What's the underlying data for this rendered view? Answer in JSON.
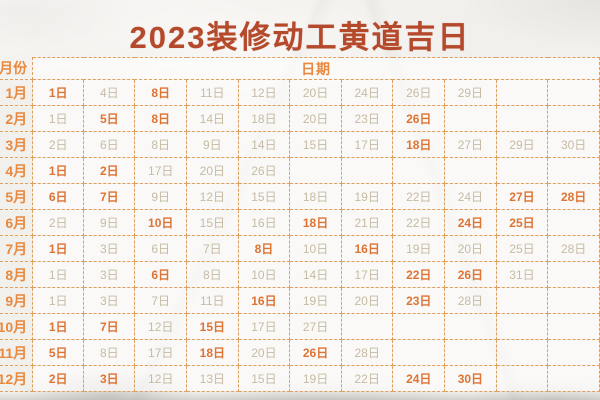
{
  "title": "2023装修动工黄道吉日",
  "table": {
    "month_header": "月份",
    "date_header": "日期",
    "visible_day_columns": 11,
    "rows": [
      {
        "month": "1月",
        "days": [
          {
            "d": "1日",
            "hl": true
          },
          {
            "d": "4日",
            "hl": false
          },
          {
            "d": "8日",
            "hl": true
          },
          {
            "d": "11日",
            "hl": false
          },
          {
            "d": "12日",
            "hl": false
          },
          {
            "d": "20日",
            "hl": false
          },
          {
            "d": "24日",
            "hl": false
          },
          {
            "d": "26日",
            "hl": false
          },
          {
            "d": "29日",
            "hl": false
          },
          null,
          null
        ]
      },
      {
        "month": "2月",
        "days": [
          {
            "d": "1日",
            "hl": false
          },
          {
            "d": "5日",
            "hl": true
          },
          {
            "d": "8日",
            "hl": true
          },
          {
            "d": "14日",
            "hl": false
          },
          {
            "d": "18日",
            "hl": false
          },
          {
            "d": "20日",
            "hl": false
          },
          {
            "d": "23日",
            "hl": false
          },
          {
            "d": "26日",
            "hl": true
          },
          null,
          null,
          null
        ]
      },
      {
        "month": "3月",
        "days": [
          {
            "d": "2日",
            "hl": false
          },
          {
            "d": "6日",
            "hl": false
          },
          {
            "d": "8日",
            "hl": false
          },
          {
            "d": "9日",
            "hl": false
          },
          {
            "d": "14日",
            "hl": false
          },
          {
            "d": "15日",
            "hl": false
          },
          {
            "d": "17日",
            "hl": false
          },
          {
            "d": "18日",
            "hl": true
          },
          {
            "d": "27日",
            "hl": false
          },
          {
            "d": "29日",
            "hl": false
          },
          {
            "d": "30日",
            "hl": false
          }
        ]
      },
      {
        "month": "4月",
        "days": [
          {
            "d": "1日",
            "hl": true
          },
          {
            "d": "2日",
            "hl": true
          },
          {
            "d": "17日",
            "hl": false
          },
          {
            "d": "20日",
            "hl": false
          },
          {
            "d": "26日",
            "hl": false
          },
          null,
          null,
          null,
          null,
          null,
          null
        ]
      },
      {
        "month": "5月",
        "days": [
          {
            "d": "6日",
            "hl": true
          },
          {
            "d": "7日",
            "hl": true
          },
          {
            "d": "9日",
            "hl": false
          },
          {
            "d": "12日",
            "hl": false
          },
          {
            "d": "15日",
            "hl": false
          },
          {
            "d": "18日",
            "hl": false
          },
          {
            "d": "19日",
            "hl": false
          },
          {
            "d": "22日",
            "hl": false
          },
          {
            "d": "24日",
            "hl": false
          },
          {
            "d": "27日",
            "hl": true
          },
          {
            "d": "28日",
            "hl": true
          }
        ]
      },
      {
        "month": "6月",
        "days": [
          {
            "d": "2日",
            "hl": false
          },
          {
            "d": "9日",
            "hl": false
          },
          {
            "d": "10日",
            "hl": true
          },
          {
            "d": "15日",
            "hl": false
          },
          {
            "d": "16日",
            "hl": false
          },
          {
            "d": "18日",
            "hl": true
          },
          {
            "d": "21日",
            "hl": false
          },
          {
            "d": "22日",
            "hl": false
          },
          {
            "d": "24日",
            "hl": true
          },
          {
            "d": "25日",
            "hl": true
          },
          null
        ]
      },
      {
        "month": "7月",
        "days": [
          {
            "d": "1日",
            "hl": true
          },
          {
            "d": "3日",
            "hl": false
          },
          {
            "d": "6日",
            "hl": false
          },
          {
            "d": "7日",
            "hl": false
          },
          {
            "d": "8日",
            "hl": true
          },
          {
            "d": "10日",
            "hl": false
          },
          {
            "d": "16日",
            "hl": true
          },
          {
            "d": "19日",
            "hl": false
          },
          {
            "d": "20日",
            "hl": false
          },
          {
            "d": "25日",
            "hl": false
          },
          {
            "d": "28日",
            "hl": false
          }
        ]
      },
      {
        "month": "8月",
        "days": [
          {
            "d": "1日",
            "hl": false
          },
          {
            "d": "3日",
            "hl": false
          },
          {
            "d": "6日",
            "hl": true
          },
          {
            "d": "8日",
            "hl": false
          },
          {
            "d": "10日",
            "hl": false
          },
          {
            "d": "14日",
            "hl": false
          },
          {
            "d": "17日",
            "hl": false
          },
          {
            "d": "22日",
            "hl": true
          },
          {
            "d": "26日",
            "hl": true
          },
          {
            "d": "31日",
            "hl": false
          },
          null
        ]
      },
      {
        "month": "9月",
        "days": [
          {
            "d": "1日",
            "hl": false
          },
          {
            "d": "3日",
            "hl": false
          },
          {
            "d": "7日",
            "hl": false
          },
          {
            "d": "11日",
            "hl": false
          },
          {
            "d": "16日",
            "hl": true
          },
          {
            "d": "19日",
            "hl": false
          },
          {
            "d": "20日",
            "hl": false
          },
          {
            "d": "23日",
            "hl": true
          },
          {
            "d": "28日",
            "hl": false
          },
          null,
          null
        ]
      },
      {
        "month": "10月",
        "days": [
          {
            "d": "1日",
            "hl": true
          },
          {
            "d": "7日",
            "hl": true
          },
          {
            "d": "12日",
            "hl": false
          },
          {
            "d": "15日",
            "hl": true
          },
          {
            "d": "17日",
            "hl": false
          },
          {
            "d": "27日",
            "hl": false
          },
          null,
          null,
          null,
          null,
          null
        ]
      },
      {
        "month": "11月",
        "days": [
          {
            "d": "5日",
            "hl": true
          },
          {
            "d": "8日",
            "hl": false
          },
          {
            "d": "17日",
            "hl": false
          },
          {
            "d": "18日",
            "hl": true
          },
          {
            "d": "20日",
            "hl": false
          },
          {
            "d": "26日",
            "hl": true
          },
          {
            "d": "28日",
            "hl": false
          },
          null,
          null,
          null,
          null
        ]
      },
      {
        "month": "12月",
        "days": [
          {
            "d": "2日",
            "hl": true
          },
          {
            "d": "3日",
            "hl": true
          },
          {
            "d": "12日",
            "hl": false
          },
          {
            "d": "13日",
            "hl": false
          },
          {
            "d": "15日",
            "hl": false
          },
          {
            "d": "19日",
            "hl": false
          },
          {
            "d": "22日",
            "hl": false
          },
          {
            "d": "24日",
            "hl": true
          },
          {
            "d": "30日",
            "hl": true
          },
          null,
          null
        ]
      }
    ]
  },
  "colors": {
    "title": "#b5492c",
    "border": "#dfa05f",
    "month_text": "#e8893f",
    "day_regular": "#c6bba3",
    "day_highlight": "#dd7434",
    "page_bg": "#f2f0ec"
  }
}
